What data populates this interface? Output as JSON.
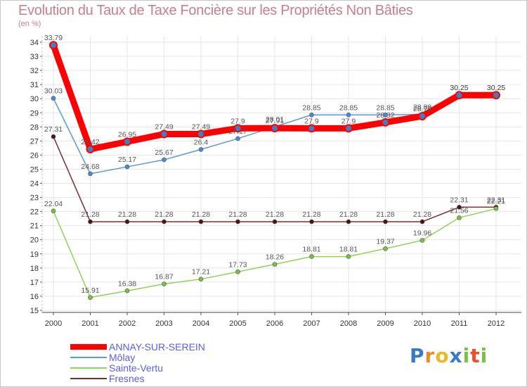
{
  "chart_data": {
    "type": "line",
    "title": "Evolution du Taux de Taxe Foncière sur les Propriétés Non Bâties",
    "ylabel": "(en %)",
    "x": [
      "2000",
      "2001",
      "2002",
      "2003",
      "2004",
      "2005",
      "2006",
      "2007",
      "2008",
      "2009",
      "2010",
      "2011",
      "2012"
    ],
    "ylim": [
      15,
      34
    ],
    "yticks": [
      15,
      16,
      17,
      18,
      19,
      20,
      21,
      22,
      23,
      24,
      25,
      26,
      27,
      28,
      29,
      30,
      31,
      32,
      33,
      34
    ],
    "series": [
      {
        "name": "ANNAY-SUR-SEREIN",
        "color": "#ff0000",
        "values": [
          33.79,
          26.42,
          26.95,
          27.49,
          27.49,
          27.9,
          27.91,
          27.9,
          27.9,
          28.32,
          28.76,
          30.25,
          30.25
        ],
        "labels": [
          "33.79",
          "26.42",
          "26.95",
          "27.49",
          "27.49",
          "27.9",
          "27.91",
          "27.9",
          "27.9",
          "28.32",
          "28.76",
          "30.25",
          "30.25"
        ]
      },
      {
        "name": "Môlay",
        "color": "#5b9bd5",
        "values": [
          30.03,
          24.68,
          25.17,
          25.67,
          26.4,
          27.17,
          28.01,
          28.85,
          28.85,
          28.85,
          28.89,
          30.25,
          30.25
        ],
        "labels": [
          "30.03",
          "24.68",
          "25.17",
          "25.67",
          "26.4",
          "27.17",
          "28.01",
          "28.85",
          "28.85",
          "28.85",
          "28.89",
          "30.25",
          "30.25"
        ]
      },
      {
        "name": "Sainte-Vertu",
        "color": "#8fd35a",
        "values": [
          22.04,
          15.91,
          16.38,
          16.87,
          17.21,
          17.73,
          18.26,
          18.81,
          18.81,
          19.37,
          19.96,
          21.56,
          22.21
        ],
        "labels": [
          "22.04",
          "15.91",
          "16.38",
          "16.87",
          "17.21",
          "17.73",
          "18.26",
          "18.81",
          "18.81",
          "19.37",
          "19.96",
          "21.56",
          "22.21"
        ]
      },
      {
        "name": "Fresnes",
        "color": "#7a2e2e",
        "values": [
          27.31,
          21.28,
          21.28,
          21.28,
          21.28,
          21.28,
          21.28,
          21.28,
          21.28,
          21.28,
          21.28,
          22.31,
          22.31
        ],
        "labels": [
          "27.31",
          "21.28",
          "21.28",
          "21.28",
          "21.28",
          "21.28",
          "21.28",
          "21.28",
          "21.28",
          "21.28",
          "21.28",
          "22.31",
          "22.31"
        ]
      }
    ]
  },
  "legend": {
    "items": [
      "ANNAY-SUR-SEREIN",
      "Môlay",
      "Sainte-Vertu",
      "Fresnes"
    ]
  },
  "logo": {
    "text": "Proxiti",
    "letters": [
      "P",
      "r",
      "o",
      "x",
      "i",
      "t",
      "i"
    ],
    "colors": [
      "#3a78c8",
      "#e88b2a",
      "#e8b82a",
      "#3a78c8",
      "#7ac143",
      "#e8502a",
      "#7ac143"
    ]
  }
}
